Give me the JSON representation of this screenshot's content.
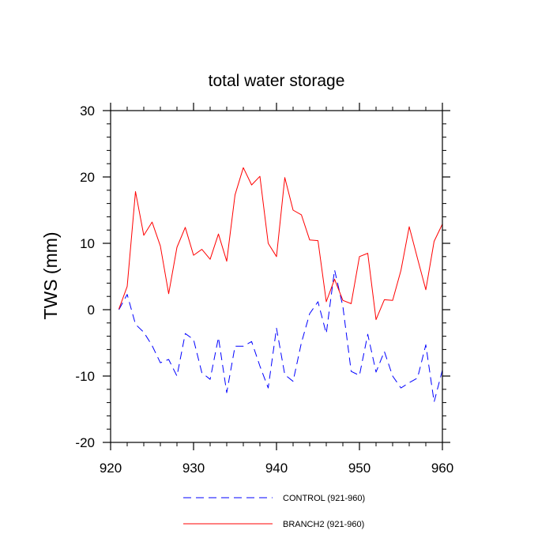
{
  "chart_data": {
    "type": "line",
    "title": "total water storage",
    "xlabel": "",
    "ylabel": "TWS  (mm)",
    "xlim": [
      920,
      960
    ],
    "ylim": [
      -20,
      30
    ],
    "xticks": [
      920,
      930,
      940,
      950,
      960
    ],
    "yticks": [
      -20,
      -10,
      0,
      10,
      20,
      30
    ],
    "legend_position": "bottom-center",
    "series": [
      {
        "name": "CONTROL (921-960)",
        "color": "#0000ff",
        "style": "dashed",
        "x": [
          921,
          922,
          923,
          924,
          925,
          926,
          927,
          928,
          929,
          930,
          931,
          932,
          933,
          934,
          935,
          936,
          937,
          938,
          939,
          940,
          941,
          942,
          943,
          944,
          945,
          946,
          947,
          948,
          949,
          950,
          951,
          952,
          953,
          954,
          955,
          956,
          957,
          958,
          959,
          960
        ],
        "values": [
          0,
          2.3,
          -2.2,
          -3.4,
          -5.4,
          -8,
          -7.5,
          -10,
          -3.6,
          -4.5,
          -9.5,
          -10.5,
          -4.2,
          -12.5,
          -5.5,
          -5.5,
          -4.8,
          -8.5,
          -11.8,
          -2.8,
          -9.8,
          -10.8,
          -5,
          -0.6,
          1.2,
          -3.6,
          6,
          0.5,
          -9.3,
          -9.9,
          -3.7,
          -9.4,
          -6.3,
          -10,
          -11.8,
          -11,
          -10.3,
          -5.3,
          -13.9,
          -9.1
        ]
      },
      {
        "name": "BRANCH2 (921-960)",
        "color": "#ff0000",
        "style": "solid",
        "x": [
          921,
          922,
          923,
          924,
          925,
          926,
          927,
          928,
          929,
          930,
          931,
          932,
          933,
          934,
          935,
          936,
          937,
          938,
          939,
          940,
          941,
          942,
          943,
          944,
          945,
          946,
          947,
          948,
          949,
          950,
          951,
          952,
          953,
          954,
          955,
          956,
          957,
          958,
          959,
          960
        ],
        "values": [
          0.1,
          3.5,
          17.8,
          11.2,
          13.2,
          9.6,
          2.4,
          9.4,
          12.4,
          8.2,
          9.1,
          7.6,
          11.4,
          7.3,
          17.3,
          21.4,
          18.8,
          20.1,
          10,
          8,
          19.9,
          15,
          14.3,
          10.5,
          10.4,
          1.2,
          4.6,
          1.4,
          0.9,
          8,
          8.5,
          -1.5,
          1.5,
          1.4,
          5.9,
          12.5,
          7.7,
          3,
          10.3,
          12.9
        ]
      }
    ]
  }
}
